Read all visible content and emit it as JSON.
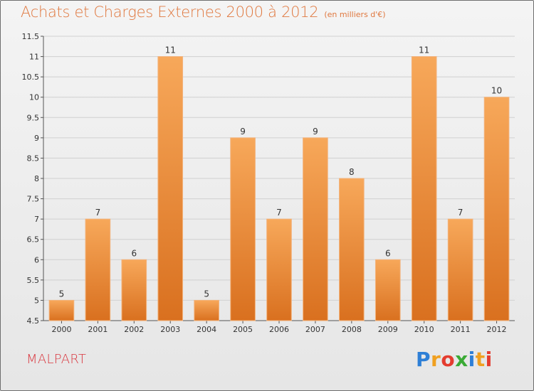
{
  "header": {
    "title": "Achats et Charges Externes 2000 à 2012",
    "subtitle": "(en milliers d'€)"
  },
  "footer": {
    "commune": "MALPART",
    "logo_text": "Proxiti",
    "logo_letters": [
      {
        "ch": "P",
        "color": "#2e7fd6"
      },
      {
        "ch": "r",
        "color": "#f0a020"
      },
      {
        "ch": "o",
        "color": "#e43c2f"
      },
      {
        "ch": "x",
        "color": "#3aaa35"
      },
      {
        "ch": "i",
        "color": "#2e7fd6"
      },
      {
        "ch": "t",
        "color": "#f0a020"
      },
      {
        "ch": "i",
        "color": "#e43c2f"
      }
    ]
  },
  "colors": {
    "bar_top": "#f7a85a",
    "bar_bottom": "#d9701f",
    "title": "#e0783f",
    "commune": "#d9363e",
    "grid": "#d0d0d0",
    "axis": "#555555"
  },
  "chart_data": {
    "type": "bar",
    "title": "Achats et Charges Externes 2000 à 2012",
    "subtitle": "(en milliers d'€)",
    "categories": [
      "2000",
      "2001",
      "2002",
      "2003",
      "2004",
      "2005",
      "2006",
      "2007",
      "2008",
      "2009",
      "2010",
      "2011",
      "2012"
    ],
    "values": [
      5,
      7,
      6,
      11,
      5,
      9,
      7,
      9,
      8,
      6,
      11,
      7,
      10
    ],
    "value_labels": [
      "5",
      "7",
      "6",
      "11",
      "5",
      "9",
      "7",
      "9",
      "8",
      "6",
      "11",
      "7",
      "10"
    ],
    "ylim": [
      4.5,
      11.5
    ],
    "yticks": [
      4.5,
      5,
      5.5,
      6,
      6.5,
      7,
      7.5,
      8,
      8.5,
      9,
      9.5,
      10,
      10.5,
      11,
      11.5
    ],
    "ytick_labels": [
      "4.5",
      "5",
      "5.5",
      "6",
      "6.5",
      "7",
      "7.5",
      "8",
      "8.5",
      "9",
      "9.5",
      "10",
      "10.5",
      "11",
      "11.5"
    ],
    "xlabel": "",
    "ylabel": "",
    "grid": true
  }
}
